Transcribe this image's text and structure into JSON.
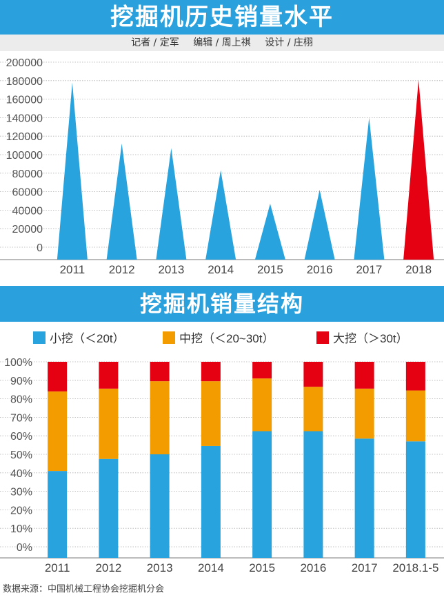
{
  "header": {
    "title": "挖掘机历史销量水平"
  },
  "credits": {
    "reporter": "记者 / 定军",
    "editor": "编辑 / 周上祺",
    "designer": "设计 / 庄栩"
  },
  "section2": {
    "title": "挖掘机销量结构"
  },
  "source": "数据来源：中国机械工程协会挖掘机分会",
  "colors": {
    "banner": "#2aa0dc",
    "blue": "#29a3dd",
    "orange": "#f39c00",
    "red": "#e50012"
  },
  "chart_data": [
    {
      "type": "bar",
      "title": "挖掘机历史销量水平",
      "categories": [
        "2011",
        "2012",
        "2013",
        "2014",
        "2015",
        "2016",
        "2017",
        "2018"
      ],
      "values": [
        178000,
        112000,
        107000,
        83000,
        47000,
        62000,
        140000,
        181000
      ],
      "highlight_index": 7,
      "ylim": [
        0,
        200000
      ],
      "yticks": [
        "200000",
        "180000",
        "160000",
        "140000",
        "120000",
        "100000",
        "80000",
        "60000",
        "40000",
        "20000",
        "0"
      ]
    },
    {
      "type": "bar",
      "stacked": true,
      "title": "挖掘机销量结构",
      "categories": [
        "2011",
        "2012",
        "2013",
        "2014",
        "2015",
        "2016",
        "2017",
        "2018.1-5"
      ],
      "ylim": [
        0,
        100
      ],
      "yticks": [
        "100%",
        "90%",
        "80%",
        "70%",
        "60%",
        "50%",
        "40%",
        "30%",
        "20%",
        "10%",
        "0%"
      ],
      "legend_position": "top",
      "series": [
        {
          "name": "小挖（＜20t）",
          "values": [
            41,
            47.5,
            50,
            54.5,
            62.5,
            62.5,
            58.5,
            57
          ]
        },
        {
          "name": "中挖（＜20~30t）",
          "values": [
            43,
            38,
            39.5,
            35,
            28.5,
            24,
            27,
            27.5
          ]
        },
        {
          "name": "大挖（＞30t）",
          "values": [
            16,
            14.5,
            10.5,
            10.5,
            9,
            13.5,
            14.5,
            15.5
          ]
        }
      ]
    }
  ]
}
